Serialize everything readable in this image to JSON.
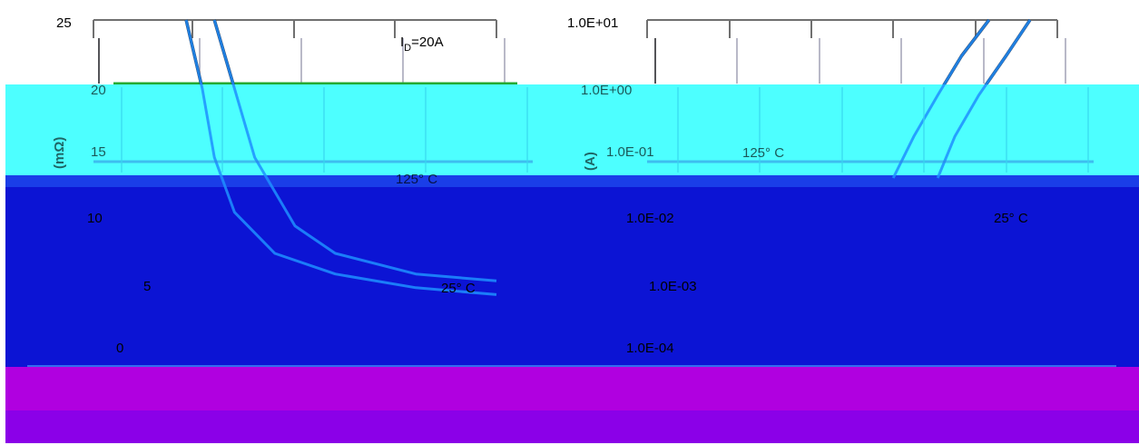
{
  "chart_data": [
    {
      "type": "line",
      "title": "",
      "xlabel": "",
      "ylabel": "(mΩ)",
      "yticks": [
        "25",
        "20",
        "15",
        "10",
        "5",
        "0"
      ],
      "ylim": [
        0,
        25
      ],
      "xlim": [
        0,
        10
      ],
      "annotation_id": "I",
      "annotation_id_sub": "D",
      "annotation_id_value": "=20A",
      "annotation_hot": "125° C",
      "annotation_room": "25° C",
      "series": [
        {
          "x": [
            2.3,
            2.7,
            3.0,
            3.5,
            4.5,
            6.0,
            8.0,
            10.0
          ],
          "y": [
            25,
            20,
            15,
            11,
            8,
            6.5,
            5.5,
            5.0
          ]
        },
        {
          "x": [
            3.0,
            3.5,
            4.0,
            5.0,
            6.0,
            8.0,
            10.0
          ],
          "y": [
            25,
            20,
            15,
            10,
            8,
            6.5,
            6.0
          ]
        }
      ]
    },
    {
      "type": "line",
      "title": "",
      "xlabel": "",
      "ylabel": "(A)",
      "yscale": "log",
      "yticks": [
        "1.0E+01",
        "1.0E+00",
        "1.0E-01",
        "1.0E-02",
        "1.0E-03",
        "1.0E-04"
      ],
      "ylim": [
        0.0001,
        10
      ],
      "xlim": [
        0,
        1.2
      ],
      "annotation_hot": "125° C",
      "annotation_room": "25° C",
      "series": [
        {
          "x": [
            0.72,
            0.78,
            0.85,
            0.92,
            1.0
          ],
          "y": [
            0.05,
            0.2,
            0.8,
            3,
            10
          ]
        },
        {
          "x": [
            0.85,
            0.9,
            0.97,
            1.05,
            1.12
          ],
          "y": [
            0.05,
            0.2,
            0.8,
            3,
            10
          ]
        }
      ]
    }
  ],
  "colors": {
    "curve": "#222233",
    "curve_covered": "#1e8fff",
    "gridline": "#b9b9c8",
    "axis": "#707070",
    "green_line": "#22aa33",
    "cyan_band": "#4dffff",
    "blue_band": "#0c14d4",
    "dark_blue_band": "#0a0fb8",
    "magenta_band": "#b000e0",
    "purple_band": "#8b00e8"
  }
}
